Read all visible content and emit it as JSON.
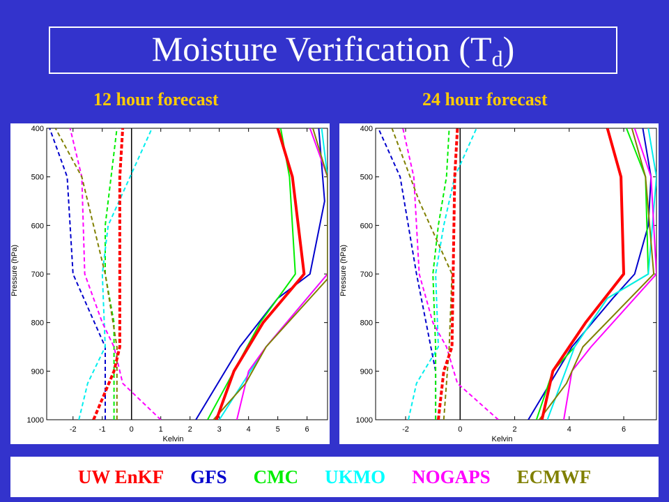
{
  "title_main": "Moisture Verification (T",
  "title_sub": "d",
  "title_end": ")",
  "legend": [
    {
      "label": "UW EnKF",
      "color": "#ff0000"
    },
    {
      "label": "GFS",
      "color": "#0000cc"
    },
    {
      "label": "CMC",
      "color": "#00ee00"
    },
    {
      "label": "UKMO",
      "color": "#00eeee"
    },
    {
      "label": "NOGAPS",
      "color": "#ff00ff"
    },
    {
      "label": "ECMWF",
      "color": "#808000"
    }
  ],
  "chart_data": [
    {
      "type": "line",
      "title": "12 hour forecast",
      "xlabel": "Kelvin",
      "ylabel": "Pressure (hPa)",
      "xlim": [
        -2.9,
        6.7
      ],
      "ylim": [
        1000,
        400
      ],
      "y_reversed": true,
      "xticks": [
        -2,
        -1,
        0,
        1,
        2,
        3,
        4,
        5,
        6
      ],
      "yticks": [
        400,
        500,
        600,
        700,
        800,
        900,
        1000
      ],
      "zero_line": true,
      "series": [
        {
          "name": "UW EnKF",
          "color": "#ff0000",
          "style": "solid",
          "width": 4,
          "points": [
            [
              2.9,
              1000
            ],
            [
              3.5,
              900
            ],
            [
              4.5,
              800
            ],
            [
              5.9,
              700
            ],
            [
              5.5,
              500
            ],
            [
              5.0,
              400
            ]
          ]
        },
        {
          "name": "GFS",
          "color": "#0000cc",
          "style": "solid",
          "width": 2,
          "points": [
            [
              2.2,
              1000
            ],
            [
              3.7,
              850
            ],
            [
              5.0,
              750
            ],
            [
              6.1,
              700
            ],
            [
              6.6,
              550
            ],
            [
              6.4,
              400
            ]
          ]
        },
        {
          "name": "CMC",
          "color": "#00ee00",
          "style": "solid",
          "width": 2,
          "points": [
            [
              2.6,
              1000
            ],
            [
              3.5,
              900
            ],
            [
              4.4,
              800
            ],
            [
              5.6,
              700
            ],
            [
              5.4,
              500
            ],
            [
              5.1,
              400
            ]
          ]
        },
        {
          "name": "UKMO",
          "color": "#00eeee",
          "style": "solid",
          "width": 2,
          "points": [
            [
              3.0,
              1000
            ],
            [
              4.6,
              850
            ],
            [
              6.7,
              700
            ],
            [
              6.7,
              500
            ],
            [
              6.5,
              400
            ]
          ]
        },
        {
          "name": "NOGAPS",
          "color": "#ff00ff",
          "style": "solid",
          "width": 2,
          "points": [
            [
              3.6,
              1000
            ],
            [
              4.0,
              900
            ],
            [
              4.6,
              850
            ],
            [
              6.7,
              700
            ],
            [
              6.7,
              500
            ],
            [
              6.1,
              400
            ]
          ]
        },
        {
          "name": "ECMWF",
          "color": "#808000",
          "style": "solid",
          "width": 2,
          "points": [
            [
              2.8,
              1000
            ],
            [
              3.9,
              925
            ],
            [
              4.6,
              850
            ],
            [
              6.7,
              710
            ],
            [
              6.7,
              500
            ],
            [
              6.2,
              400
            ]
          ]
        },
        {
          "name": "UW EnKF",
          "color": "#ff0000",
          "style": "dash",
          "width": 4,
          "points": [
            [
              -1.3,
              1000
            ],
            [
              -0.6,
              900
            ],
            [
              -0.4,
              850
            ],
            [
              -0.4,
              500
            ],
            [
              -0.3,
              400
            ]
          ]
        },
        {
          "name": "GFS",
          "color": "#0000cc",
          "style": "dash",
          "width": 2,
          "points": [
            [
              -0.9,
              1000
            ],
            [
              -0.9,
              850
            ],
            [
              -2.0,
              700
            ],
            [
              -2.2,
              500
            ],
            [
              -2.8,
              400
            ]
          ]
        },
        {
          "name": "CMC",
          "color": "#00ee00",
          "style": "dash",
          "width": 2,
          "points": [
            [
              -0.6,
              1000
            ],
            [
              -0.6,
              800
            ],
            [
              -0.9,
              700
            ],
            [
              -0.9,
              600
            ],
            [
              -0.7,
              500
            ],
            [
              -0.5,
              400
            ]
          ]
        },
        {
          "name": "UKMO",
          "color": "#00eeee",
          "style": "dash",
          "width": 2,
          "points": [
            [
              -1.8,
              1000
            ],
            [
              -1.5,
              925
            ],
            [
              -0.9,
              850
            ],
            [
              -1.0,
              700
            ],
            [
              -0.8,
              600
            ],
            [
              0.7,
              400
            ]
          ]
        },
        {
          "name": "NOGAPS",
          "color": "#ff00ff",
          "style": "dash",
          "width": 2,
          "points": [
            [
              1.0,
              1000
            ],
            [
              -0.3,
              925
            ],
            [
              -0.6,
              850
            ],
            [
              -1.0,
              800
            ],
            [
              -1.6,
              700
            ],
            [
              -1.7,
              500
            ],
            [
              -2.1,
              400
            ]
          ]
        },
        {
          "name": "ECMWF",
          "color": "#808000",
          "style": "dash",
          "width": 2,
          "points": [
            [
              -0.5,
              1000
            ],
            [
              -0.5,
              850
            ],
            [
              -0.9,
              700
            ],
            [
              -1.7,
              500
            ],
            [
              -2.6,
              400
            ]
          ]
        }
      ]
    },
    {
      "type": "line",
      "title": "24 hour forecast",
      "xlabel": "Kelvin",
      "ylabel": "Pressure (hPa)",
      "xlim": [
        -3.1,
        7.2
      ],
      "ylim": [
        1000,
        400
      ],
      "y_reversed": true,
      "xticks": [
        -2,
        0,
        2,
        4,
        6
      ],
      "yticks": [
        400,
        500,
        600,
        700,
        800,
        900,
        1000
      ],
      "zero_line": true,
      "series": [
        {
          "name": "UW EnKF",
          "color": "#ff0000",
          "style": "solid",
          "width": 4,
          "points": [
            [
              3.0,
              1000
            ],
            [
              3.4,
              900
            ],
            [
              4.6,
              800
            ],
            [
              6.0,
              700
            ],
            [
              5.9,
              500
            ],
            [
              5.4,
              400
            ]
          ]
        },
        {
          "name": "GFS",
          "color": "#0000cc",
          "style": "solid",
          "width": 2,
          "points": [
            [
              2.5,
              1000
            ],
            [
              4.1,
              850
            ],
            [
              5.6,
              750
            ],
            [
              6.4,
              700
            ],
            [
              6.9,
              600
            ],
            [
              7.0,
              500
            ],
            [
              6.7,
              400
            ]
          ]
        },
        {
          "name": "CMC",
          "color": "#00ee00",
          "style": "solid",
          "width": 2,
          "points": [
            [
              2.8,
              1000
            ],
            [
              3.4,
              900
            ],
            [
              4.2,
              850
            ],
            [
              5.4,
              750
            ],
            [
              6.9,
              700
            ],
            [
              6.8,
              500
            ],
            [
              6.1,
              400
            ]
          ]
        },
        {
          "name": "UKMO",
          "color": "#00eeee",
          "style": "solid",
          "width": 2,
          "points": [
            [
              3.2,
              1000
            ],
            [
              4.2,
              850
            ],
            [
              5.4,
              750
            ],
            [
              6.9,
              700
            ],
            [
              7.2,
              500
            ],
            [
              6.9,
              400
            ]
          ]
        },
        {
          "name": "NOGAPS",
          "color": "#ff00ff",
          "style": "solid",
          "width": 2,
          "points": [
            [
              3.8,
              1000
            ],
            [
              4.1,
              900
            ],
            [
              4.8,
              850
            ],
            [
              7.2,
              700
            ],
            [
              7.0,
              500
            ],
            [
              6.4,
              400
            ]
          ]
        },
        {
          "name": "ECMWF",
          "color": "#808000",
          "style": "solid",
          "width": 2,
          "points": [
            [
              2.9,
              1000
            ],
            [
              3.9,
              925
            ],
            [
              4.5,
              850
            ],
            [
              7.1,
              700
            ],
            [
              6.8,
              500
            ],
            [
              6.3,
              400
            ]
          ]
        },
        {
          "name": "UW EnKF",
          "color": "#ff0000",
          "style": "dash",
          "width": 4,
          "points": [
            [
              -0.8,
              1000
            ],
            [
              -0.6,
              900
            ],
            [
              -0.3,
              850
            ],
            [
              -0.2,
              500
            ],
            [
              -0.1,
              400
            ]
          ]
        },
        {
          "name": "GFS",
          "color": "#0000cc",
          "style": "dash",
          "width": 2,
          "points": [
            [
              -0.9,
              1000
            ],
            [
              -0.9,
              900
            ],
            [
              -1.6,
              700
            ],
            [
              -2.2,
              500
            ],
            [
              -3.0,
              400
            ]
          ]
        },
        {
          "name": "CMC",
          "color": "#00ee00",
          "style": "dash",
          "width": 2,
          "points": [
            [
              -0.9,
              1000
            ],
            [
              -0.9,
              850
            ],
            [
              -1.0,
              700
            ],
            [
              -0.8,
              600
            ],
            [
              -0.5,
              500
            ],
            [
              -0.4,
              400
            ]
          ]
        },
        {
          "name": "UKMO",
          "color": "#00eeee",
          "style": "dash",
          "width": 2,
          "points": [
            [
              -1.9,
              1000
            ],
            [
              -1.6,
              925
            ],
            [
              -0.8,
              850
            ],
            [
              -0.9,
              700
            ],
            [
              -0.6,
              600
            ],
            [
              -0.2,
              500
            ],
            [
              0.6,
              400
            ]
          ]
        },
        {
          "name": "NOGAPS",
          "color": "#ff00ff",
          "style": "dash",
          "width": 2,
          "points": [
            [
              1.4,
              1000
            ],
            [
              -0.1,
              925
            ],
            [
              -0.5,
              850
            ],
            [
              -1.0,
              800
            ],
            [
              -1.5,
              700
            ],
            [
              -1.7,
              500
            ],
            [
              -2.1,
              400
            ]
          ]
        },
        {
          "name": "ECMWF",
          "color": "#808000",
          "style": "dash",
          "width": 2,
          "points": [
            [
              -0.6,
              1000
            ],
            [
              -0.4,
              850
            ],
            [
              -0.3,
              700
            ],
            [
              -1.5,
              550
            ],
            [
              -2.5,
              400
            ]
          ]
        }
      ]
    }
  ]
}
